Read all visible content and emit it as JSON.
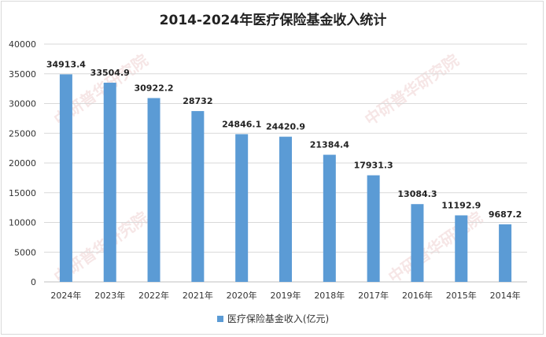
{
  "chart_data": {
    "type": "bar",
    "title": "2014-2024年医疗保险基金收入统计",
    "categories": [
      "2024年",
      "2023年",
      "2022年",
      "2021年",
      "2020年",
      "2019年",
      "2018年",
      "2017年",
      "2016年",
      "2015年",
      "2014年"
    ],
    "series": [
      {
        "name": "医疗保险基金收入(亿元)",
        "values": [
          34913.4,
          33504.9,
          30922.2,
          28732,
          24846.1,
          24420.9,
          21384.4,
          17931.3,
          13084.3,
          11192.9,
          9687.2
        ],
        "labels": [
          "34913.4",
          "33504.9",
          "30922.2",
          "28732",
          "24846.1",
          "24420.9",
          "21384.4",
          "17931.3",
          "13084.3",
          "11192.9",
          "9687.2"
        ]
      }
    ],
    "ylim": [
      0,
      40000
    ],
    "yticks": [
      "0",
      "5000",
      "10000",
      "15000",
      "20000",
      "25000",
      "30000",
      "35000",
      "40000"
    ],
    "grid": true,
    "legend_position": "bottom",
    "bar_color": "#5b9bd5"
  },
  "watermark": "中研普华研究院"
}
